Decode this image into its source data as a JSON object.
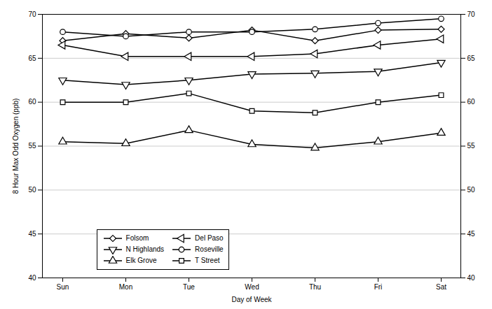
{
  "chart_data": {
    "type": "line",
    "categories": [
      "Sun",
      "Mon",
      "Tue",
      "Wed",
      "Thu",
      "Fri",
      "Sat"
    ],
    "series": [
      {
        "name": "Folsom",
        "values": [
          67.0,
          67.8,
          67.3,
          68.2,
          67.0,
          68.2,
          68.3
        ],
        "marker": "diamond"
      },
      {
        "name": "Del Paso",
        "values": [
          66.5,
          65.2,
          65.2,
          65.2,
          65.5,
          66.5,
          67.2
        ],
        "marker": "triangle-left"
      },
      {
        "name": "N Highlands",
        "values": [
          62.5,
          62.0,
          62.5,
          63.2,
          63.3,
          63.5,
          64.5
        ],
        "marker": "triangle-down"
      },
      {
        "name": "Roseville",
        "values": [
          68.0,
          67.5,
          68.0,
          68.0,
          68.3,
          69.0,
          69.5
        ],
        "marker": "circle"
      },
      {
        "name": "Elk Grove",
        "values": [
          55.5,
          55.3,
          56.8,
          55.2,
          54.8,
          55.5,
          56.5
        ],
        "marker": "triangle-up"
      },
      {
        "name": "T Street",
        "values": [
          60.0,
          60.0,
          61.0,
          59.0,
          58.8,
          60.0,
          60.8
        ],
        "marker": "square"
      }
    ],
    "color": "#000000",
    "xlabel": "Day of Week",
    "ylabel": "8 Hour Max Odd Oxygen (ppb)",
    "ylim": [
      40,
      70
    ],
    "yticks": [
      40,
      45,
      50,
      55,
      60,
      65,
      70
    ],
    "grid": true,
    "legend": "lower left"
  }
}
